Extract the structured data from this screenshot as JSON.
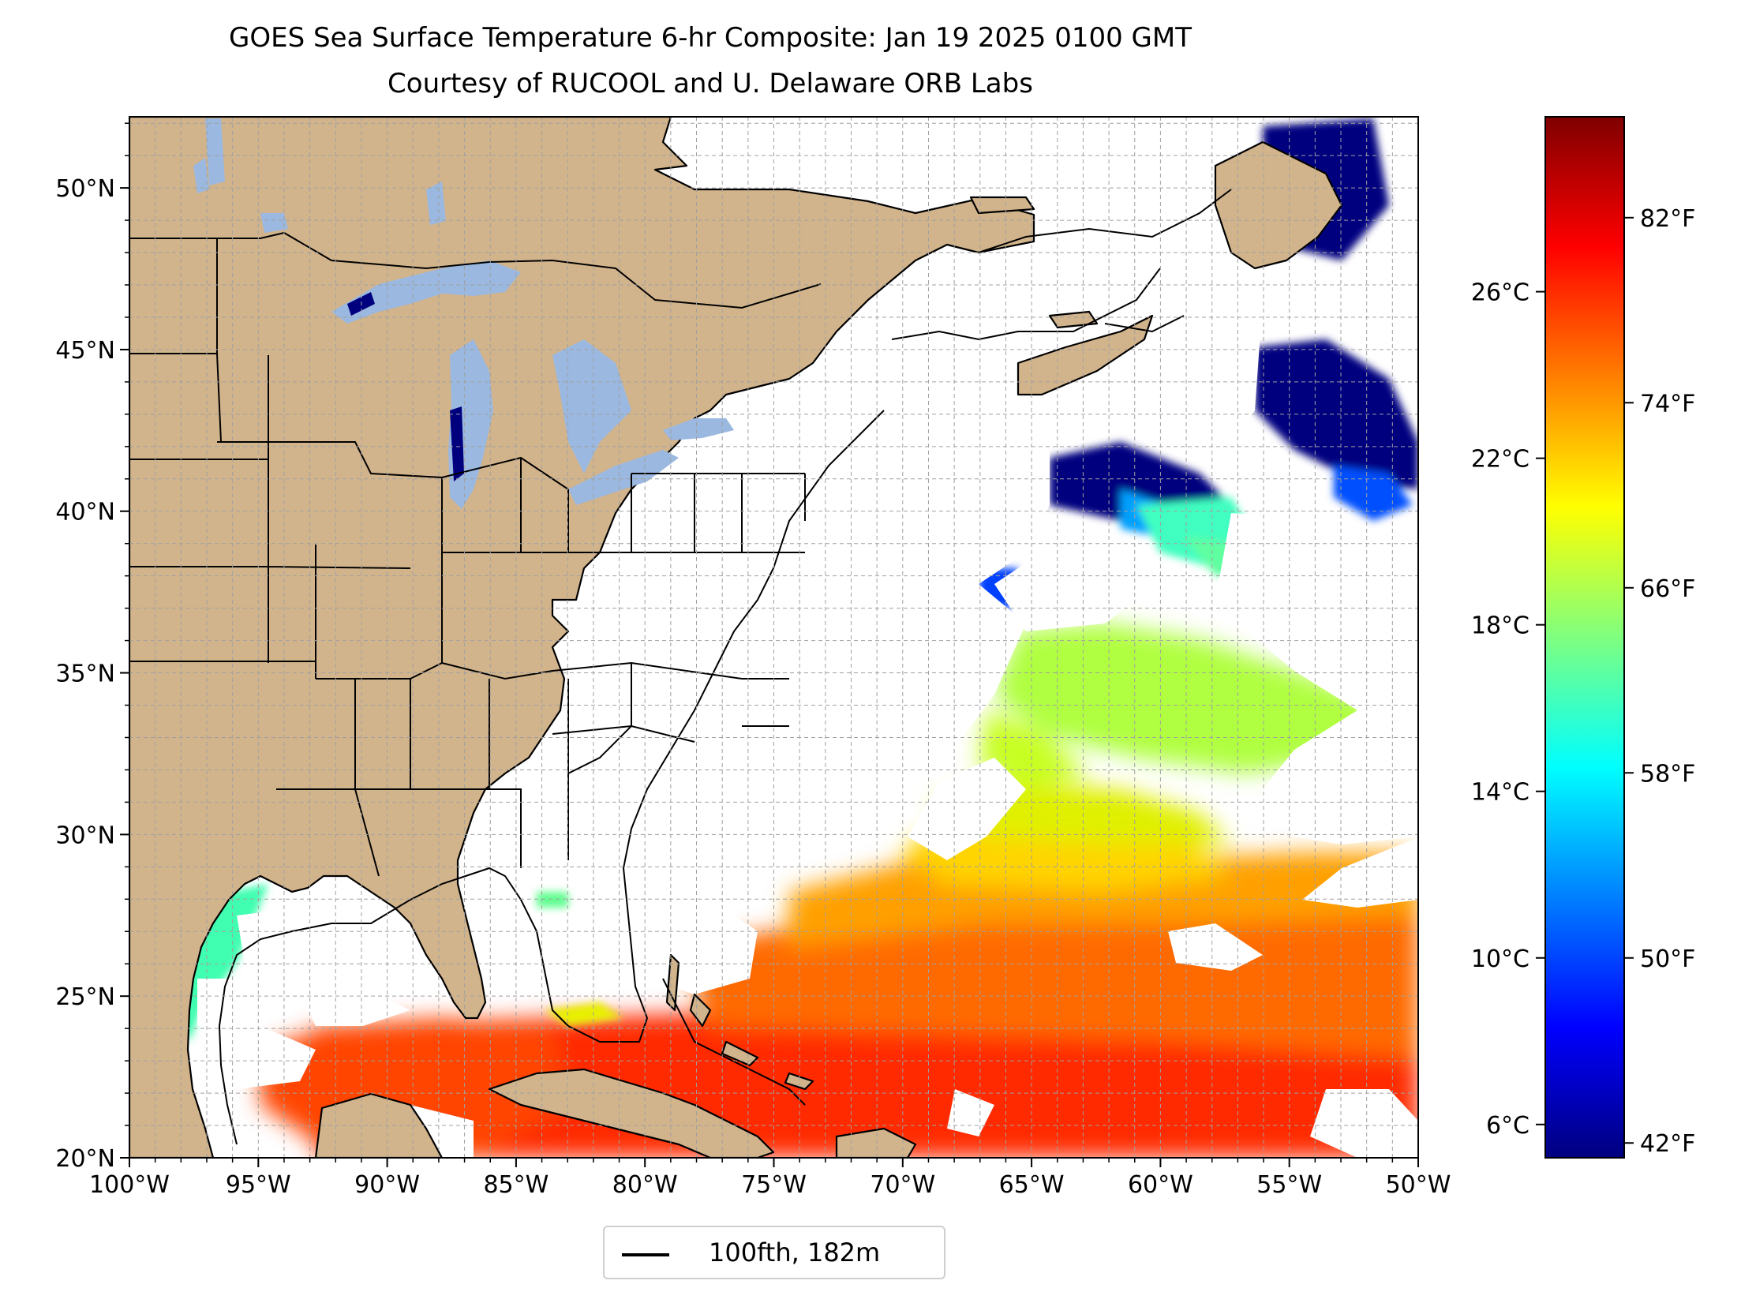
{
  "title": "GOES Sea Surface Temperature 6-hr Composite: Jan 19 2025 0100 GMT",
  "subtitle": "Courtesy of RUCOOL and U. Delaware ORB Labs",
  "map": {
    "lon_range": [
      -100,
      -50
    ],
    "lat_range": [
      20,
      52.2
    ],
    "gridlines": true,
    "gridline_style": "dashed",
    "land_color": "#d2b48c",
    "lake_color": "#9ab8e0",
    "ocean_nodata_color": "#ffffff",
    "lon_ticks": [
      -100,
      -95,
      -90,
      -85,
      -80,
      -75,
      -70,
      -65,
      -60,
      -55,
      -50
    ],
    "lon_tick_labels": [
      "100°W",
      "95°W",
      "90°W",
      "85°W",
      "80°W",
      "75°W",
      "70°W",
      "65°W",
      "60°W",
      "55°W",
      "50°W"
    ],
    "lat_ticks": [
      20,
      25,
      30,
      35,
      40,
      45,
      50
    ],
    "lat_tick_labels": [
      "20°N",
      "25°N",
      "30°N",
      "35°N",
      "40°N",
      "45°N",
      "50°N"
    ]
  },
  "colorbar": {
    "colormap": "jet",
    "celsius_range": [
      5.2,
      30.2
    ],
    "celsius_ticks": [
      6,
      10,
      14,
      18,
      22,
      26
    ],
    "celsius_tick_labels": [
      "6°C",
      "10°C",
      "14°C",
      "18°C",
      "22°C",
      "26°C"
    ],
    "fahrenheit_ticks": [
      42,
      50,
      58,
      66,
      74,
      82
    ],
    "fahrenheit_tick_labels": [
      "42°F",
      "50°F",
      "58°F",
      "66°F",
      "74°F",
      "82°F"
    ],
    "colors": [
      "#00007f",
      "#0000ff",
      "#007fff",
      "#00ffff",
      "#7fff7f",
      "#ffff00",
      "#ff7f00",
      "#ff0000",
      "#7f0000"
    ]
  },
  "legend": {
    "label": "100fth, 182m",
    "placement": "bottom-center"
  }
}
